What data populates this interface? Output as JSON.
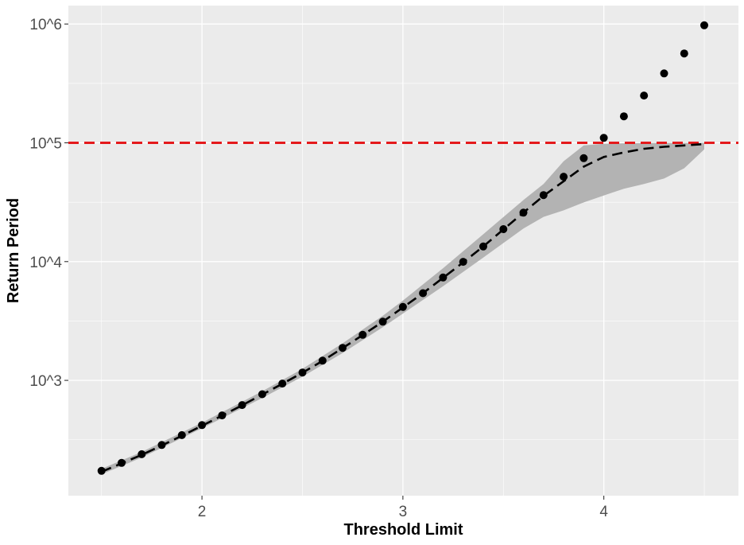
{
  "chart_data": {
    "type": "line",
    "title": "",
    "xlabel": "Threshold Limit",
    "ylabel": "Return Period",
    "x_ticks": [
      2,
      3,
      4
    ],
    "x_tick_labels": [
      "2",
      "3",
      "4"
    ],
    "y_scale": "log10",
    "y_ticks": [
      1000,
      10000,
      100000,
      1000000
    ],
    "y_tick_labels": [
      "10^3",
      "10^4",
      "10^5",
      "10^6"
    ],
    "xlim": [
      1.335,
      4.67
    ],
    "ylim": [
      107,
      1430000
    ],
    "grid": true,
    "legend": "none",
    "colors": {
      "panel": "#ebebeb",
      "grid": "#ffffff",
      "band": "#b3b3b3",
      "points": "#000000",
      "fit_line": "#000000",
      "reference_line": "#e41a1c"
    },
    "reference_line": {
      "y": 100000,
      "style": "dashed"
    },
    "series": [
      {
        "kind": "points",
        "x": [
          1.5,
          1.6,
          1.7,
          1.8,
          1.9,
          2.0,
          2.1,
          2.2,
          2.3,
          2.4,
          2.5,
          2.6,
          2.7,
          2.8,
          2.9,
          3.0,
          3.1,
          3.2,
          3.3,
          3.4,
          3.5,
          3.6,
          3.7,
          3.8,
          3.9,
          4.0,
          4.1,
          4.2,
          4.3,
          4.4,
          4.5
        ],
        "y": [
          173,
          202,
          239,
          286,
          346,
          420,
          507,
          620,
          765,
          940,
          1165,
          1465,
          1880,
          2420,
          3120,
          4150,
          5420,
          7350,
          9950,
          13400,
          18750,
          25800,
          36300,
          51800,
          74300,
          110000,
          167000,
          250000,
          384000,
          565000,
          975000
        ]
      },
      {
        "kind": "fit",
        "style": "dashed",
        "x": [
          1.5,
          1.6,
          1.7,
          1.8,
          1.9,
          2.0,
          2.1,
          2.2,
          2.3,
          2.4,
          2.5,
          2.6,
          2.7,
          2.8,
          2.9,
          3.0,
          3.1,
          3.2,
          3.3,
          3.4,
          3.5,
          3.6,
          3.7,
          3.8,
          3.9,
          4.0,
          4.1,
          4.2,
          4.3,
          4.4,
          4.5
        ],
        "y": [
          170,
          200,
          236,
          283,
          342,
          415,
          505,
          617,
          760,
          935,
          1160,
          1460,
          1870,
          2410,
          3120,
          4110,
          5420,
          7300,
          9850,
          13400,
          18650,
          25800,
          35800,
          47500,
          63000,
          76000,
          83000,
          89000,
          92500,
          95000,
          97500
        ]
      },
      {
        "kind": "confidence_band",
        "x": [
          1.5,
          1.7,
          2.0,
          2.3,
          2.5,
          2.7,
          2.9,
          3.0,
          3.2,
          3.4,
          3.6,
          3.7,
          3.8,
          3.9,
          4.0,
          4.1,
          4.2,
          4.3,
          4.4,
          4.5
        ],
        "upper": [
          180,
          250,
          440,
          810,
          1250,
          2050,
          3500,
          4700,
          8800,
          17000,
          33000,
          45000,
          70000,
          95000,
          98000,
          99000,
          99500,
          99800,
          99900,
          100000
        ],
        "lower": [
          162,
          224,
          395,
          710,
          1075,
          1700,
          2800,
          3650,
          6200,
          10800,
          19000,
          23800,
          27000,
          31500,
          36000,
          41000,
          45000,
          50000,
          61000,
          88000
        ]
      }
    ]
  }
}
